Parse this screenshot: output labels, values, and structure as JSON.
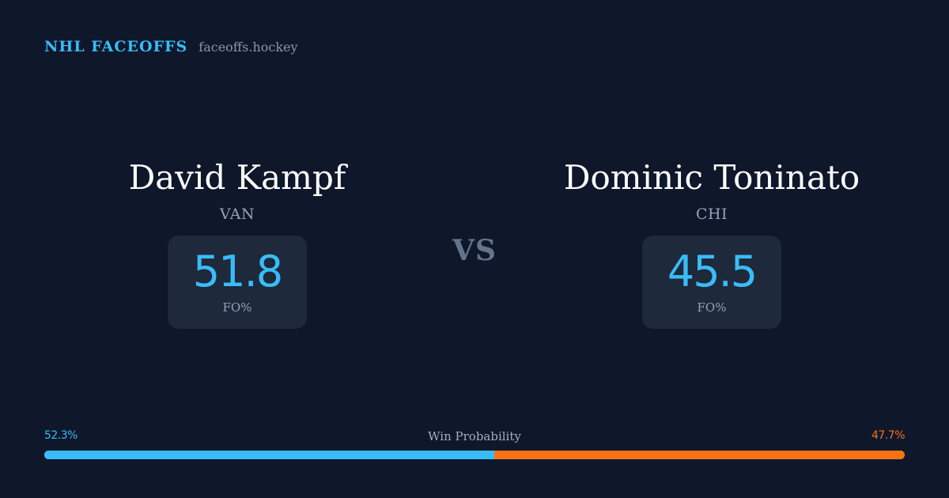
{
  "brand": {
    "name": "NHL FACEOFFS",
    "site": "faceoffs.hockey"
  },
  "players": [
    {
      "name": "David Kampf",
      "team": "VAN",
      "stat_value": "51.8",
      "stat_label": "FO%"
    },
    {
      "name": "Dominic Toninato",
      "team": "CHI",
      "stat_value": "45.5",
      "stat_label": "FO%"
    }
  ],
  "versus_label": "VS",
  "win_probability": {
    "title": "Win Probability",
    "left_label": "52.3%",
    "right_label": "47.7%",
    "left_value": 52.3,
    "right_value": 47.7,
    "left_color": "#38bdf8",
    "right_color": "#f97316"
  }
}
